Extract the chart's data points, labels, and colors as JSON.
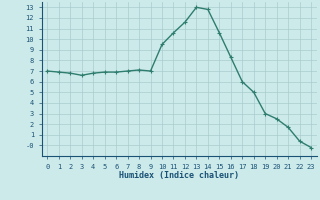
{
  "x": [
    0,
    1,
    2,
    3,
    4,
    5,
    6,
    7,
    8,
    9,
    10,
    11,
    12,
    13,
    14,
    15,
    16,
    17,
    18,
    19,
    20,
    21,
    22,
    23
  ],
  "y": [
    7.0,
    6.9,
    6.8,
    6.6,
    6.8,
    6.9,
    6.9,
    7.0,
    7.1,
    7.0,
    9.5,
    10.6,
    11.6,
    13.0,
    12.8,
    10.6,
    8.3,
    6.0,
    5.0,
    3.0,
    2.5,
    1.7,
    0.4,
    -0.2
  ],
  "line_color": "#2e7d6e",
  "marker": "+",
  "bg_color": "#cceaea",
  "grid_color": "#aacccc",
  "xlabel": "Humidex (Indice chaleur)",
  "xlabel_color": "#1a5276",
  "tick_color": "#1a5276",
  "ylim": [
    -1,
    13.5
  ],
  "xlim": [
    -0.5,
    23.5
  ],
  "yticks": [
    0,
    1,
    2,
    3,
    4,
    5,
    6,
    7,
    8,
    9,
    10,
    11,
    12,
    13
  ],
  "ytick_labels": [
    "-0",
    "1",
    "2",
    "3",
    "4",
    "5",
    "6",
    "7",
    "8",
    "9",
    "10",
    "11",
    "12",
    "13"
  ],
  "xticks": [
    0,
    1,
    2,
    3,
    4,
    5,
    6,
    7,
    8,
    9,
    10,
    11,
    12,
    13,
    14,
    15,
    16,
    17,
    18,
    19,
    20,
    21,
    22,
    23
  ],
  "linewidth": 1.0,
  "markersize": 3.5,
  "tick_fontsize": 5.0,
  "xlabel_fontsize": 6.0
}
